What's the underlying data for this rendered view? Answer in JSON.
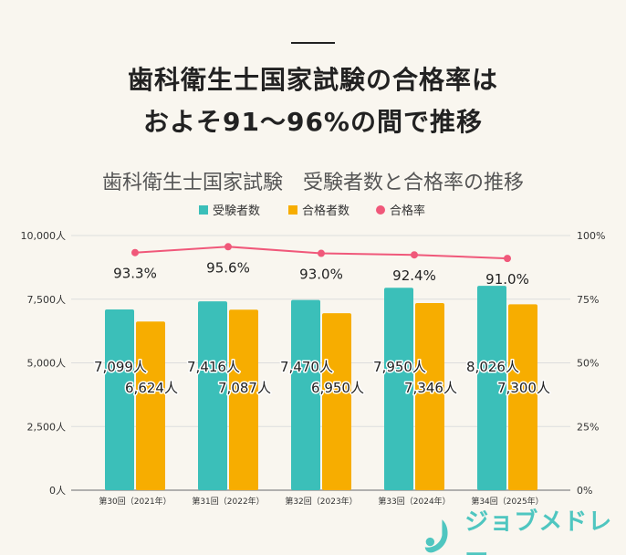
{
  "headline": {
    "line1": "歯科衛生士国家試験の合格率は",
    "line2": "およそ91～96%の間で推移"
  },
  "brand": {
    "name": "ジョブメドレー"
  },
  "colors": {
    "examinees": "#3bbfb9",
    "passers": "#f7ad00",
    "pass_rate": "#f0587a",
    "background": "#f9f6ef"
  },
  "chart_data": {
    "type": "bar",
    "title": "歯科衛生士国家試験　受験者数と合格率の推移",
    "categories": [
      "第30回（2021年）",
      "第31回（2022年）",
      "第32回（2023年）",
      "第33回（2024年）",
      "第34回（2025年）"
    ],
    "series": [
      {
        "name": "受験者数",
        "type": "bar",
        "axis": "left",
        "values": [
          7099,
          7416,
          7470,
          7950,
          8026
        ],
        "labels": [
          "7,099人",
          "7,416人",
          "7,470人",
          "7,950人",
          "8,026人"
        ]
      },
      {
        "name": "合格者数",
        "type": "bar",
        "axis": "left",
        "values": [
          6624,
          7087,
          6950,
          7346,
          7300
        ],
        "labels": [
          "6,624人",
          "7,087人",
          "6,950人",
          "7,346人",
          "7,300人"
        ]
      },
      {
        "name": "合格率",
        "type": "line",
        "axis": "right",
        "values": [
          93.3,
          95.6,
          93.0,
          92.4,
          91.0
        ],
        "labels": [
          "93.3%",
          "95.6%",
          "93.0%",
          "92.4%",
          "91.0%"
        ]
      }
    ],
    "y_left": {
      "range": [
        0,
        10000
      ],
      "ticks": [
        "0人",
        "2,500人",
        "5,000人",
        "7,500人",
        "10,000人"
      ]
    },
    "y_right": {
      "range": [
        0,
        100
      ],
      "ticks": [
        "0%",
        "25%",
        "50%",
        "75%",
        "100%"
      ]
    },
    "grid": true,
    "legend": "top-center"
  }
}
